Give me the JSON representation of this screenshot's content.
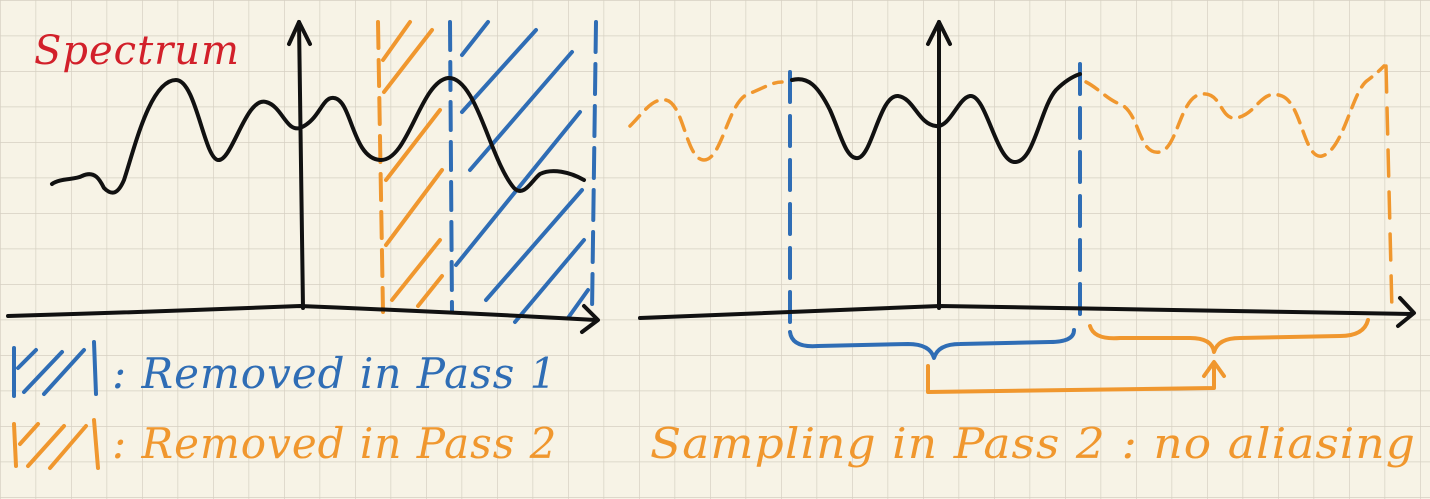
{
  "title": "Spectrum",
  "legend": [
    {
      "text": ": Removed in Pass 1",
      "color": "#2f6db5"
    },
    {
      "text": ": Removed in Pass 2",
      "color": "#f0972e"
    }
  ],
  "caption": "Sampling in Pass 2 : no aliasing",
  "colors": {
    "ink": "#111111",
    "title": "#d2202a",
    "blue": "#2f6db5",
    "orange": "#f0972e",
    "paper": "#f7f3e6",
    "grid": "#d6d0c2"
  }
}
